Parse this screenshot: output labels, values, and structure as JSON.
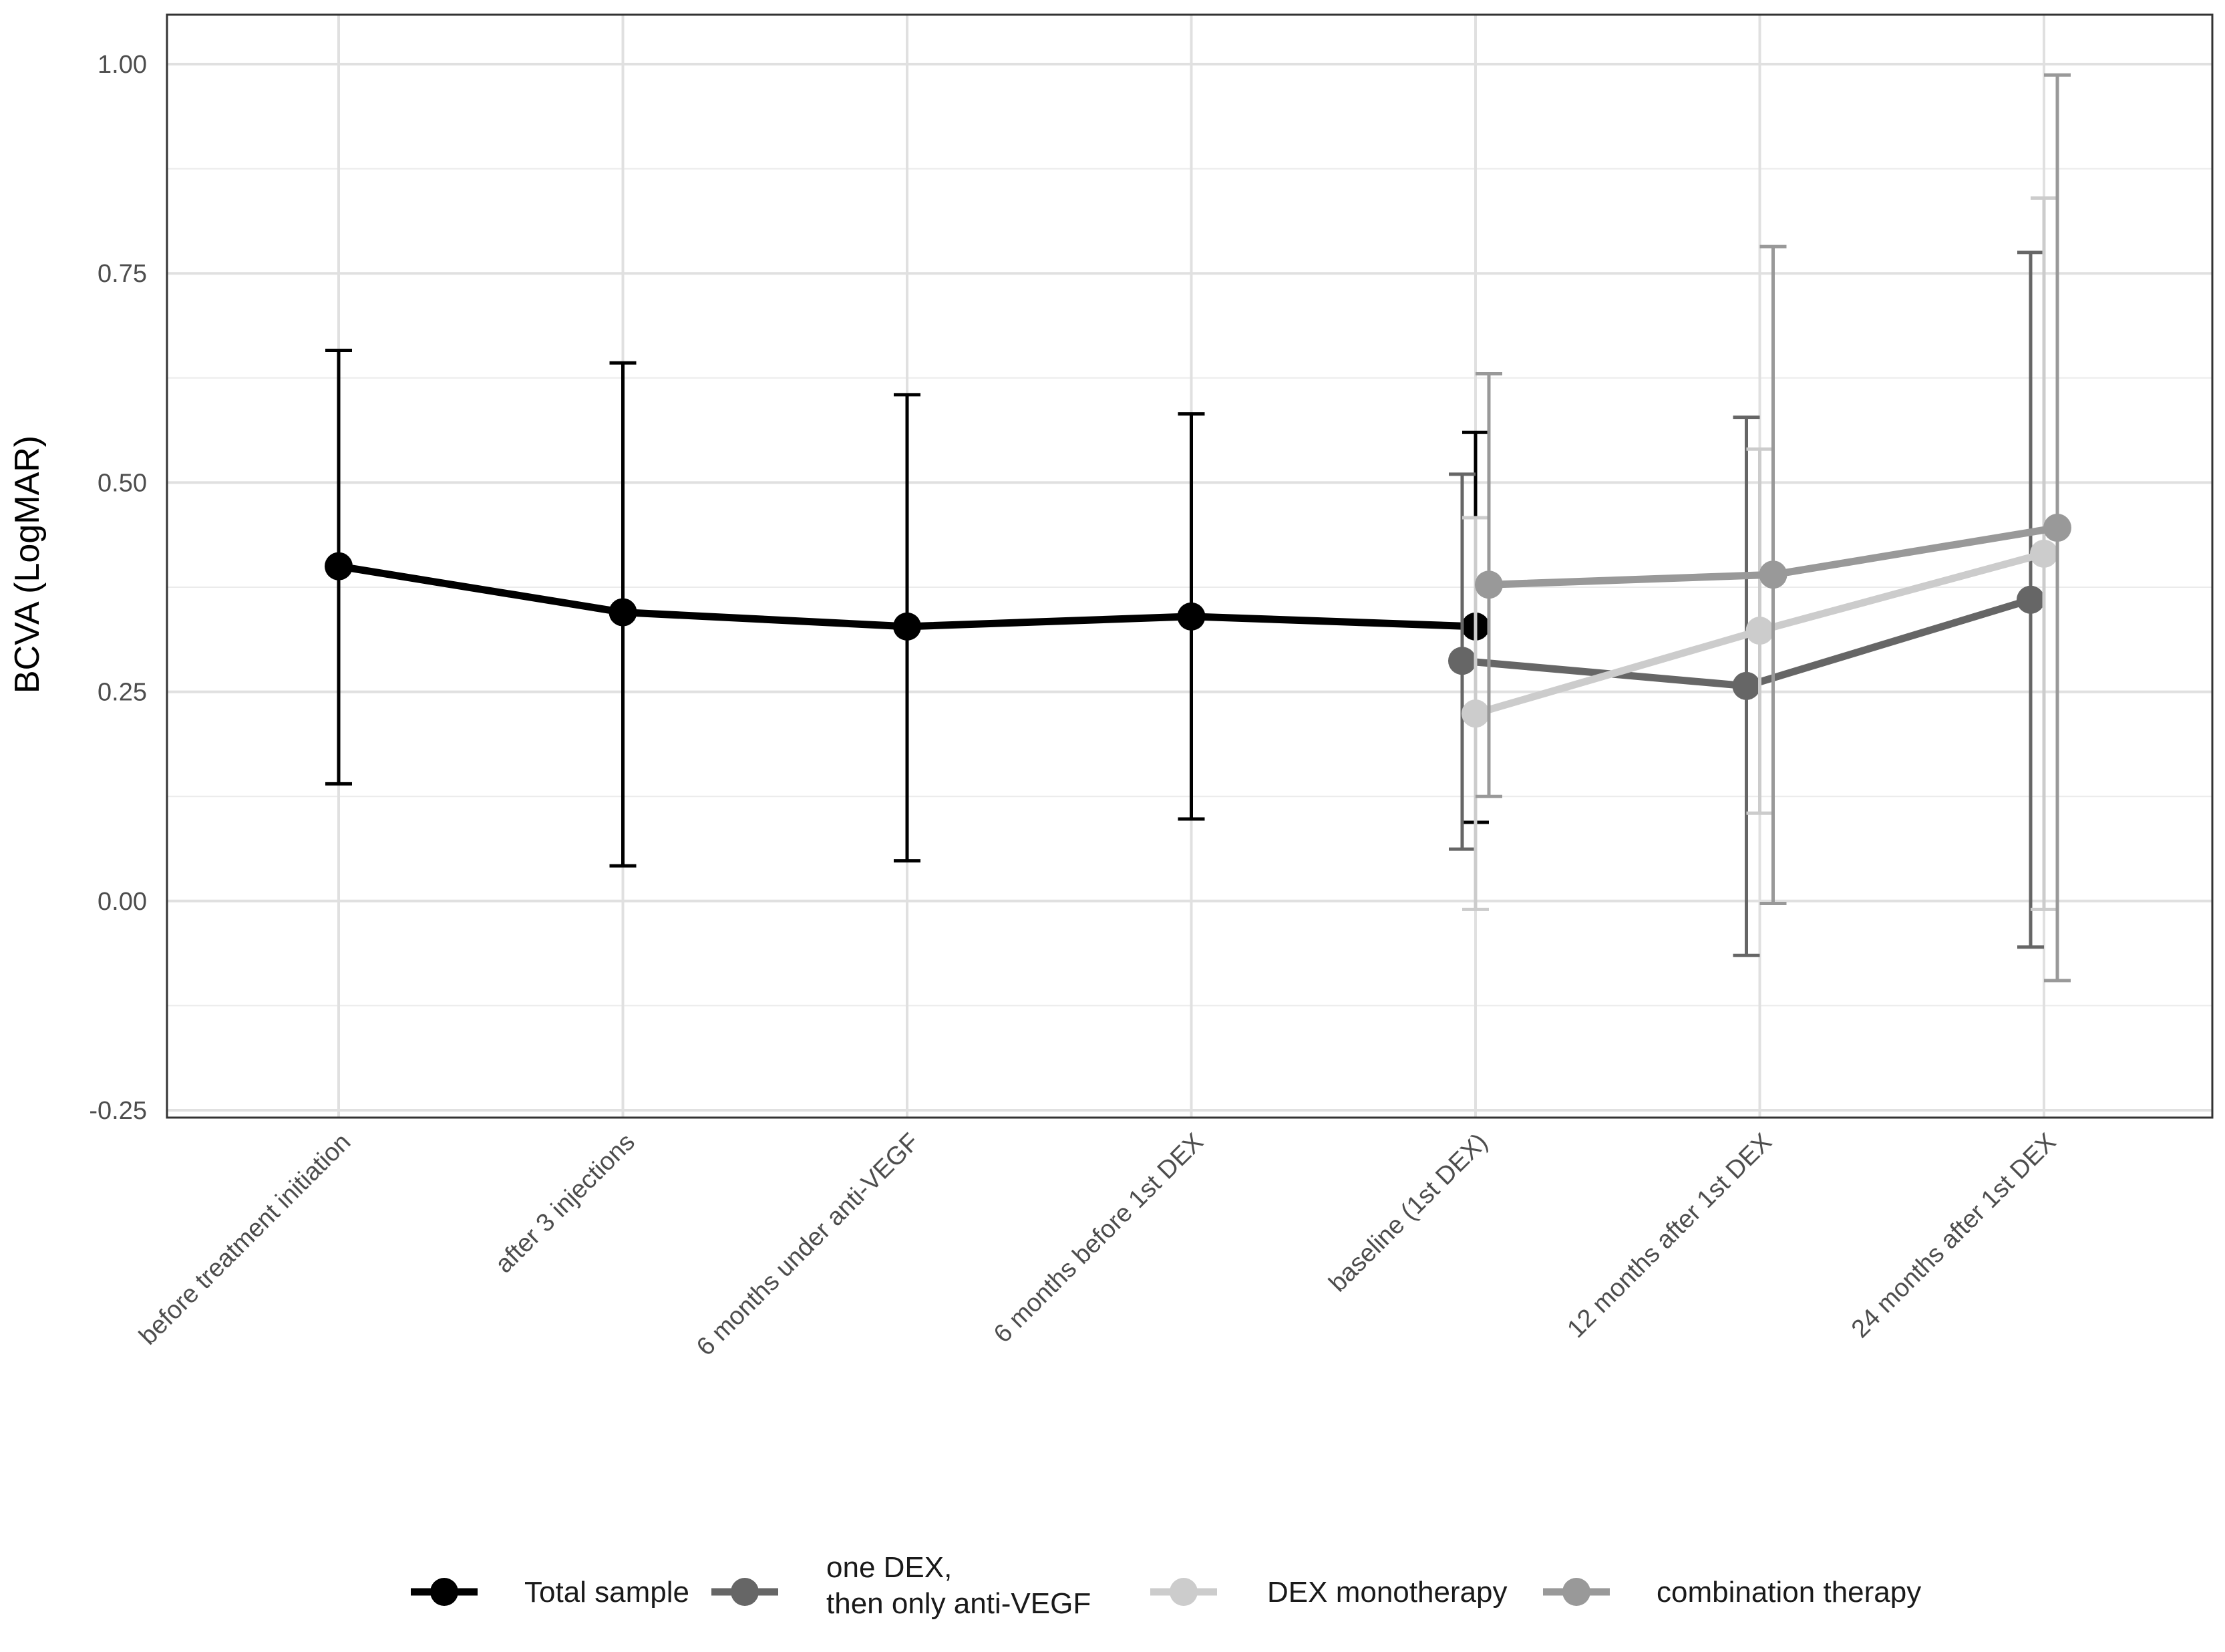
{
  "chart_data": {
    "type": "line",
    "title": "",
    "xlabel": "",
    "ylabel": "BCVA (LogMAR)",
    "ylim": [
      -0.25,
      1.0
    ],
    "yticks": [
      1.0,
      0.75,
      0.5,
      0.25,
      0.0,
      -0.25
    ],
    "ytick_labels": [
      "1.00",
      "0.75",
      "0.50",
      "0.25",
      "0.00",
      "-0.25"
    ],
    "grid": true,
    "legend_position": "bottom",
    "categories": [
      "before treatment initiation",
      "after 3 injections",
      "6 months under anti-VEGF",
      "6 months before 1st DEX",
      "baseline (1st DEX)",
      "12 months after 1st DEX",
      "24 months after 1st DEX"
    ],
    "series": [
      {
        "name": "Total sample",
        "color": "#000000",
        "x": [
          0,
          1,
          2,
          3,
          4
        ],
        "values": [
          0.4,
          0.345,
          0.328,
          0.34,
          0.328
        ],
        "lower": [
          0.14,
          0.042,
          0.048,
          0.098,
          0.094
        ],
        "upper": [
          0.658,
          0.643,
          0.605,
          0.582,
          0.56
        ]
      },
      {
        "name": "one DEX, then only anti-VEGF",
        "legend_lines": [
          "one DEX,",
          "then only anti-VEGF"
        ],
        "color": "#666666",
        "x": [
          4,
          5,
          6
        ],
        "values": [
          0.287,
          0.257,
          0.36
        ],
        "lower": [
          0.062,
          -0.065,
          -0.055
        ],
        "upper": [
          0.51,
          0.578,
          0.775
        ]
      },
      {
        "name": "DEX monotherapy",
        "color": "#cccccc",
        "x": [
          4,
          5,
          6
        ],
        "values": [
          0.224,
          0.323,
          0.415
        ],
        "lower": [
          -0.01,
          0.105,
          -0.01
        ],
        "upper": [
          0.458,
          0.54,
          0.84
        ]
      },
      {
        "name": "combination therapy",
        "color": "#999999",
        "x": [
          4,
          5,
          6
        ],
        "values": [
          0.378,
          0.39,
          0.446
        ],
        "lower": [
          0.125,
          -0.003,
          -0.095
        ],
        "upper": [
          0.63,
          0.782,
          0.987
        ]
      }
    ]
  }
}
